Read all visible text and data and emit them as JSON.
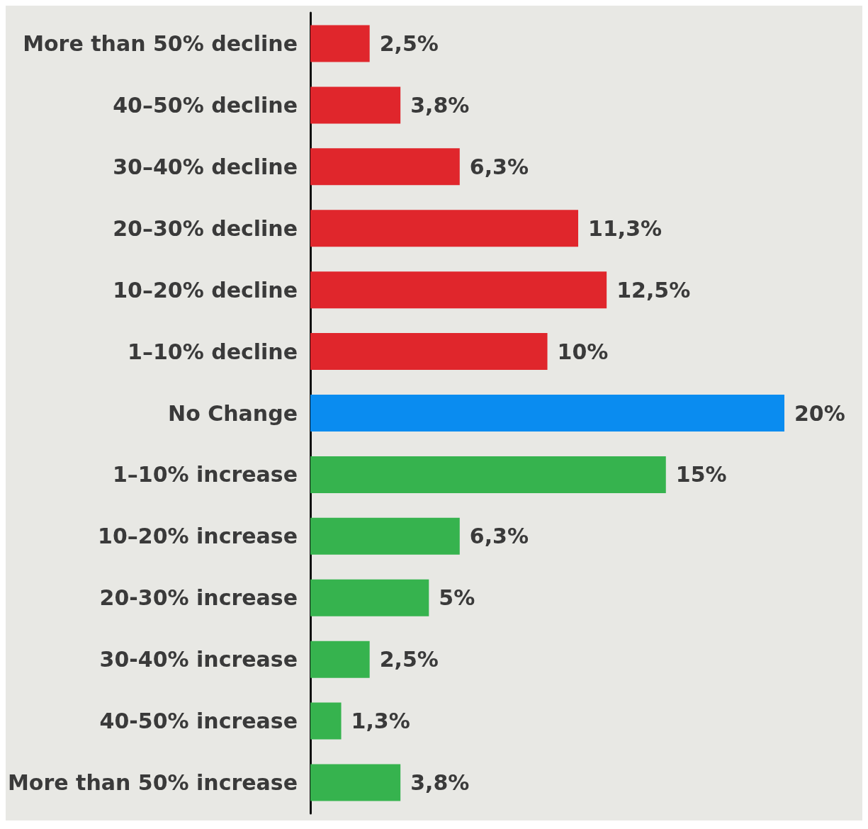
{
  "chart_data": {
    "type": "bar",
    "orientation": "horizontal",
    "categories": [
      "More than 50% decline",
      "40–50% decline",
      "30–40% decline",
      "20–30% decline",
      "10–20% decline",
      "1–10% decline",
      "No Change",
      "1–10% increase",
      "10–20% increase",
      "20-30% increase",
      "30-40% increase",
      "40-50% increase",
      "More than 50% increase"
    ],
    "values": [
      2.5,
      3.8,
      6.3,
      11.3,
      12.5,
      10,
      20,
      15,
      6.3,
      5,
      2.5,
      1.3,
      3.8
    ],
    "colors": [
      "#e0262c",
      "#e0262c",
      "#e0262c",
      "#e0262c",
      "#e0262c",
      "#e0262c",
      "#0a8cf0",
      "#36b34e",
      "#36b34e",
      "#36b34e",
      "#36b34e",
      "#36b34e",
      "#36b34e"
    ],
    "value_labels": [
      "2,5%",
      "3,8%",
      "6,3%",
      "11,3%",
      "12,5%",
      "10%",
      "20%",
      "15%",
      "6,3%",
      "5%",
      "2,5%",
      "1,3%",
      "3,8%"
    ]
  }
}
